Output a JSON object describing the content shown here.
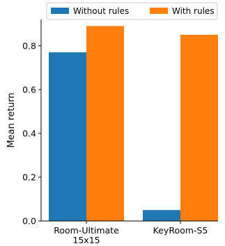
{
  "chart_data": {
    "type": "bar",
    "categories": [
      "Room-Ultimate\n15x15",
      "KeyRoom-S5"
    ],
    "series": [
      {
        "name": "Without rules",
        "values": [
          0.77,
          0.05
        ],
        "color": "#1f77b4"
      },
      {
        "name": "With rules",
        "values": [
          0.89,
          0.85
        ],
        "color": "#ff7f0e"
      }
    ],
    "title": "",
    "xlabel": "",
    "ylabel": "Mean return",
    "ylim": [
      0,
      0.92
    ],
    "yticks": [
      0.0,
      0.2,
      0.4,
      0.6,
      0.8
    ],
    "ytick_labels": [
      "0.0",
      "0.2",
      "0.4",
      "0.6",
      "0.8"
    ],
    "grid": false,
    "legend_position": "top"
  }
}
